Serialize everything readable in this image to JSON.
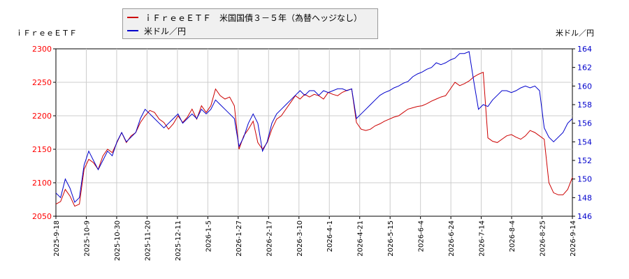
{
  "chart_data": {
    "type": "line",
    "left_axis_title": "ｉＦｒｅｅＥＴＦ",
    "right_axis_title": "米ドル／円",
    "x_ticks": [
      "2025-9-18",
      "2025-10-9",
      "2025-10-30",
      "2025-11-20",
      "2025-12-11",
      "2026-1-5",
      "2026-1-27",
      "2026-2-17",
      "2026-3-10",
      "2026-4-1",
      "2026-4-21",
      "2026-5-15",
      "2026-6-4",
      "2026-6-24",
      "2026-7-14",
      "2026-8-4",
      "2026-8-25",
      "2026-9-14"
    ],
    "y_left": {
      "min": 2050,
      "max": 2300,
      "ticks": [
        2050,
        2100,
        2150,
        2200,
        2250,
        2300
      ],
      "color": "#ff0000"
    },
    "y_right": {
      "min": 146,
      "max": 164,
      "ticks": [
        146,
        148,
        150,
        152,
        154,
        156,
        158,
        160,
        162,
        164
      ],
      "color": "#0000cc"
    },
    "grid": true,
    "legend_position": "top",
    "series": [
      {
        "name": "ｉＦｒｅｅＥＴＦ　米国国債３－５年（為替ヘッジなし）",
        "axis": "left",
        "color": "#cc0000",
        "values": [
          2068,
          2072,
          2090,
          2080,
          2065,
          2068,
          2120,
          2135,
          2130,
          2120,
          2140,
          2150,
          2145,
          2160,
          2175,
          2160,
          2170,
          2175,
          2190,
          2200,
          2208,
          2205,
          2195,
          2190,
          2180,
          2188,
          2200,
          2190,
          2198,
          2210,
          2195,
          2215,
          2205,
          2215,
          2240,
          2230,
          2225,
          2228,
          2215,
          2150,
          2170,
          2180,
          2192,
          2160,
          2150,
          2160,
          2180,
          2195,
          2200,
          2210,
          2220,
          2230,
          2225,
          2232,
          2228,
          2232,
          2230,
          2225,
          2235,
          2232,
          2230,
          2235,
          2238,
          2240,
          2190,
          2180,
          2178,
          2180,
          2185,
          2188,
          2192,
          2195,
          2198,
          2200,
          2205,
          2210,
          2212,
          2214,
          2215,
          2218,
          2222,
          2225,
          2228,
          2230,
          2240,
          2250,
          2245,
          2248,
          2252,
          2258,
          2262,
          2265,
          2167,
          2162,
          2160,
          2165,
          2170,
          2172,
          2168,
          2165,
          2170,
          2178,
          2175,
          2170,
          2165,
          2100,
          2085,
          2082,
          2082,
          2090,
          2108
        ]
      },
      {
        "name": "米ドル／円",
        "axis": "right",
        "color": "#0000cc",
        "values": [
          148.5,
          148.0,
          150.0,
          149.0,
          147.5,
          148.0,
          151.5,
          153.0,
          152.0,
          151.0,
          152.0,
          153.0,
          152.5,
          154.0,
          155.0,
          154.0,
          154.5,
          155.0,
          156.5,
          157.5,
          157.0,
          156.5,
          156.0,
          155.5,
          156.0,
          156.5,
          157.0,
          156.0,
          156.5,
          157.0,
          156.5,
          157.5,
          157.0,
          157.5,
          158.5,
          158.0,
          157.5,
          157.0,
          156.5,
          153.5,
          154.5,
          156.0,
          157.0,
          156.0,
          153.0,
          154.0,
          156.0,
          157.0,
          157.5,
          158.0,
          158.5,
          159.0,
          159.5,
          159.0,
          159.5,
          159.5,
          159.0,
          159.5,
          159.3,
          159.5,
          159.7,
          159.7,
          159.5,
          159.7,
          156.5,
          157.0,
          157.5,
          158.0,
          158.5,
          159.0,
          159.3,
          159.5,
          159.8,
          160.0,
          160.3,
          160.5,
          161.0,
          161.3,
          161.5,
          161.8,
          162.0,
          162.5,
          162.3,
          162.5,
          162.8,
          163.0,
          163.5,
          163.5,
          163.7,
          160.5,
          157.5,
          158.0,
          157.8,
          158.5,
          159.0,
          159.5,
          159.5,
          159.3,
          159.5,
          159.8,
          160.0,
          159.8,
          160.0,
          159.5,
          155.5,
          154.5,
          154.0,
          154.5,
          155.0,
          156.0,
          156.5
        ]
      }
    ]
  }
}
